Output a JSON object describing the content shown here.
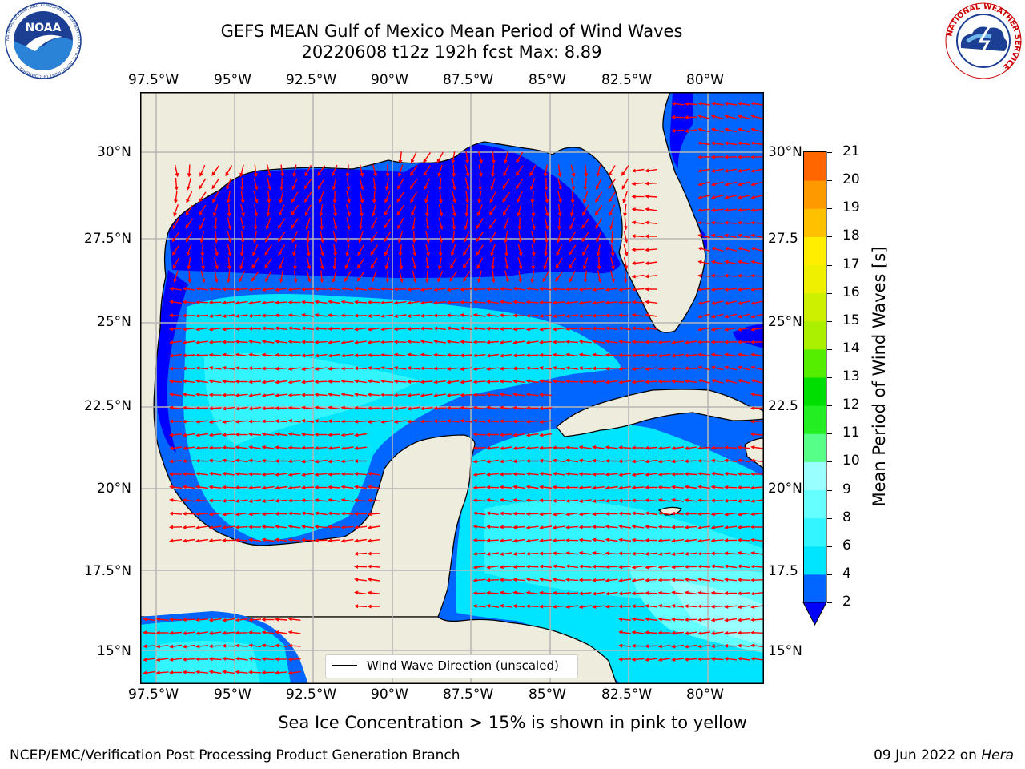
{
  "title": {
    "line1": "GEFS MEAN Gulf of Mexico Mean Period of Wind Waves",
    "line2": "20220608 t12z 192h fcst   Max: 8.89"
  },
  "map": {
    "lon_labels": [
      "97.5°W",
      "95°W",
      "92.5°W",
      "90°W",
      "87.5°W",
      "85°W",
      "82.5°W",
      "80°W"
    ],
    "lat_labels_left": [
      "30°N",
      "27.5°N",
      "25°N",
      "22.5°N",
      "20°N",
      "17.5°N",
      "15°N"
    ],
    "lat_labels_right": [
      "30°N",
      "27.5",
      "25°N",
      "22.5",
      "20°N",
      "17.5",
      "15°N"
    ],
    "land_color": "#eeecdc",
    "vector_color": "#ff0000",
    "max_value": 8.89
  },
  "legend": {
    "label": "Wind Wave Direction (unscaled)"
  },
  "colorbar": {
    "label": "Mean Period of Wind Waves [s]",
    "ticks": [
      "2",
      "4",
      "6",
      "8",
      "9",
      "10",
      "11",
      "12",
      "13",
      "14",
      "15",
      "16",
      "17",
      "18",
      "19",
      "20",
      "21"
    ],
    "colors": [
      "#0066ff",
      "#00e5ff",
      "#33f5ff",
      "#66ffff",
      "#99ffff",
      "#55ff88",
      "#22ee22",
      "#00dd00",
      "#55ee00",
      "#aaf000",
      "#ccf000",
      "#eef000",
      "#ffee00",
      "#ffc000",
      "#ff9900",
      "#ff6600",
      "#ff3300",
      "#ff0000"
    ],
    "under_color": "#0000ff"
  },
  "caption": "Sea Ice Concentration > 15% is shown in pink to yellow",
  "footer": {
    "left": "NCEP/EMC/Verification Post Processing Product Generation Branch",
    "right_date": "09 Jun 2022 on ",
    "right_host": "Hera"
  },
  "logos": {
    "noaa": "NOAA",
    "noaa_ring": "NATIONAL OCEANIC AND ATMOSPHERIC ADMINISTRATION · U.S. DEPARTMENT OF COMMERCE ·",
    "nws_ring": "NATIONAL WEATHER SERVICE"
  }
}
